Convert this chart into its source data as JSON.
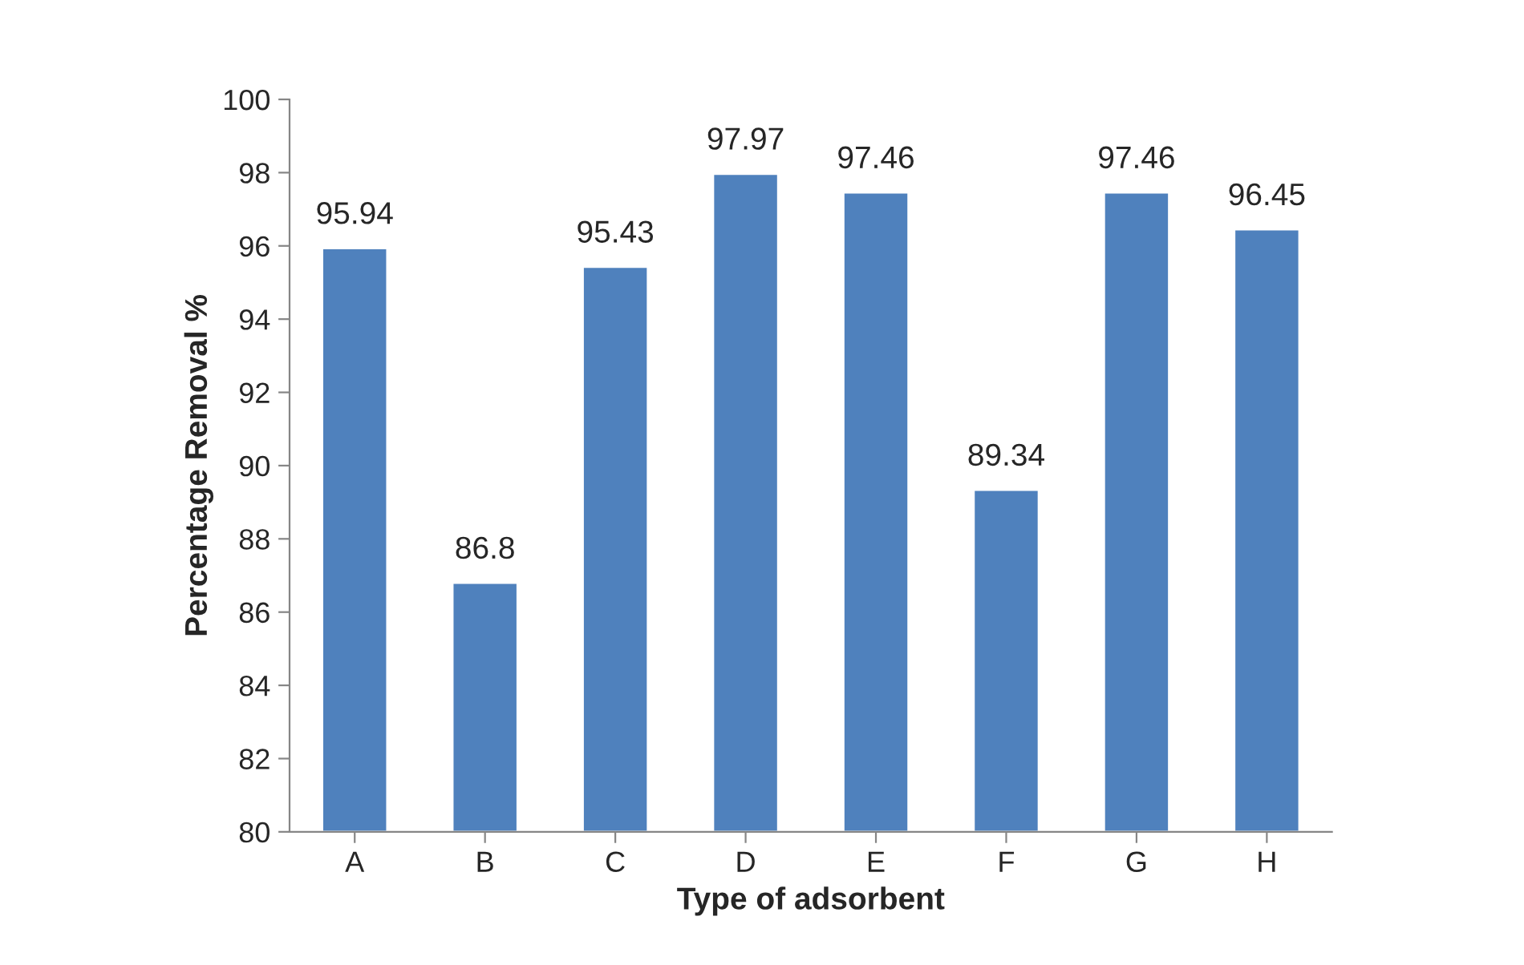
{
  "chart_data": {
    "type": "bar",
    "xlabel": "Type of adsorbent",
    "ylabel": "Percentage Removal %",
    "categories": [
      "A",
      "B",
      "C",
      "D",
      "E",
      "F",
      "G",
      "H"
    ],
    "values": [
      95.94,
      86.8,
      95.43,
      97.97,
      97.46,
      89.34,
      97.46,
      96.45
    ],
    "color": "#4f81bd",
    "ylim": [
      80,
      100
    ],
    "yticks": [
      80,
      82,
      84,
      86,
      88,
      90,
      92,
      94,
      96,
      98,
      100
    ],
    "data_labels": true,
    "grid": false,
    "legend": false
  }
}
